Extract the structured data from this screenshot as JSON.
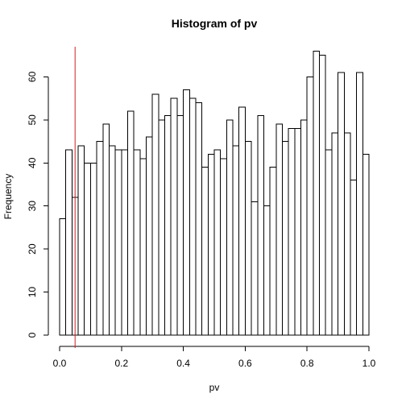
{
  "chart_data": {
    "type": "bar",
    "title": "Histogram of pv",
    "xlabel": "pv",
    "ylabel": "Frequency",
    "bin_width": 0.02,
    "bin_start": 0.0,
    "xlim": [
      0,
      1
    ],
    "ylim": [
      0,
      67
    ],
    "values": [
      27,
      43,
      32,
      44,
      40,
      40,
      45,
      49,
      44,
      43,
      43,
      52,
      43,
      41,
      46,
      56,
      50,
      51,
      55,
      51,
      57,
      55,
      54,
      39,
      42,
      43,
      41,
      50,
      44,
      53,
      45,
      31,
      51,
      30,
      39,
      49,
      45,
      48,
      48,
      50,
      60,
      66,
      65,
      43,
      47,
      61,
      47,
      36,
      61,
      42
    ],
    "x_ticks": [
      "0.0",
      "0.2",
      "0.4",
      "0.6",
      "0.8",
      "1.0"
    ],
    "y_ticks": [
      "0",
      "10",
      "20",
      "30",
      "40",
      "50",
      "60"
    ],
    "reference_line": {
      "x": 0.05,
      "color": "#cc2222"
    },
    "bar_fill": "#ffffff",
    "bar_stroke": "#000000"
  }
}
